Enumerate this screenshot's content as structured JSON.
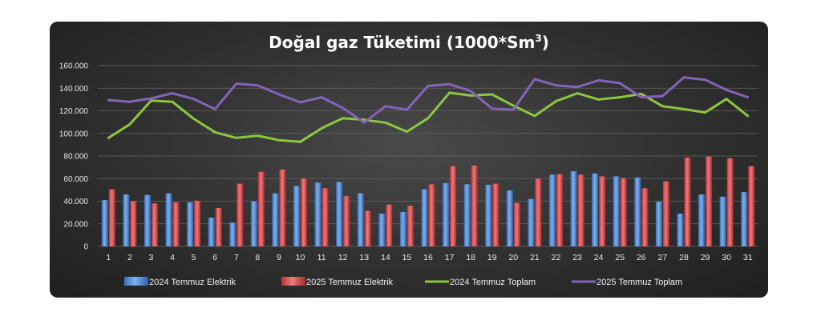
{
  "chart_data": {
    "type": "bar",
    "title_main": "Doğal gaz Tüketimi (1000*Sm",
    "title_sup": "3",
    "title_close": ")",
    "categories": [
      "1",
      "2",
      "3",
      "4",
      "5",
      "6",
      "7",
      "8",
      "9",
      "10",
      "11",
      "12",
      "13",
      "14",
      "15",
      "16",
      "17",
      "18",
      "19",
      "20",
      "21",
      "22",
      "23",
      "24",
      "25",
      "26",
      "27",
      "28",
      "29",
      "30",
      "31"
    ],
    "y_tick_labels": [
      "0",
      "20.000",
      "40.000",
      "60.000",
      "80.000",
      "100.000",
      "120.000",
      "140.000",
      "160.000"
    ],
    "ylim": [
      0,
      160000
    ],
    "grid": true,
    "legend_position": "bottom",
    "bar_series": [
      {
        "name": "2024 Temmuz Elektrik",
        "color": "#4f88d6",
        "values": [
          41000,
          46000,
          45500,
          47000,
          39000,
          25500,
          21000,
          40000,
          47000,
          53500,
          56500,
          57000,
          47000,
          29000,
          30500,
          50500,
          56000,
          55000,
          54500,
          49500,
          42000,
          63500,
          66500,
          64500,
          62000,
          61000,
          39500,
          29000,
          46000,
          44000,
          48000
        ]
      },
      {
        "name": "2025 Temmuz Elektrik",
        "color": "#d64548",
        "values": [
          50500,
          40000,
          38000,
          39000,
          40500,
          34000,
          55500,
          66000,
          68000,
          60000,
          51500,
          44500,
          31500,
          37000,
          36000,
          55000,
          71000,
          71500,
          55500,
          38500,
          60000,
          64000,
          63500,
          62000,
          60500,
          51500,
          57500,
          78500,
          79500,
          78000,
          71000
        ]
      }
    ],
    "line_series": [
      {
        "name": "2024 Temmuz Toplam",
        "color": "#8dc63f",
        "values": [
          96000,
          108000,
          129000,
          128000,
          113000,
          101000,
          96000,
          98000,
          94000,
          92500,
          104500,
          113500,
          112000,
          109500,
          101500,
          113500,
          136000,
          133500,
          134500,
          124500,
          115500,
          128500,
          135500,
          130000,
          132000,
          135000,
          124000,
          121500,
          118500,
          130500,
          115500
        ]
      },
      {
        "name": "2025 Temmuz Toplam",
        "color": "#8463b9",
        "values": [
          129500,
          128000,
          131000,
          135500,
          130500,
          121500,
          144000,
          142500,
          134500,
          127500,
          132000,
          122500,
          109500,
          124000,
          121000,
          142000,
          143500,
          137500,
          122000,
          121000,
          148000,
          142500,
          141000,
          147000,
          144500,
          132000,
          133000,
          149500,
          147500,
          138500,
          132000
        ]
      }
    ]
  }
}
